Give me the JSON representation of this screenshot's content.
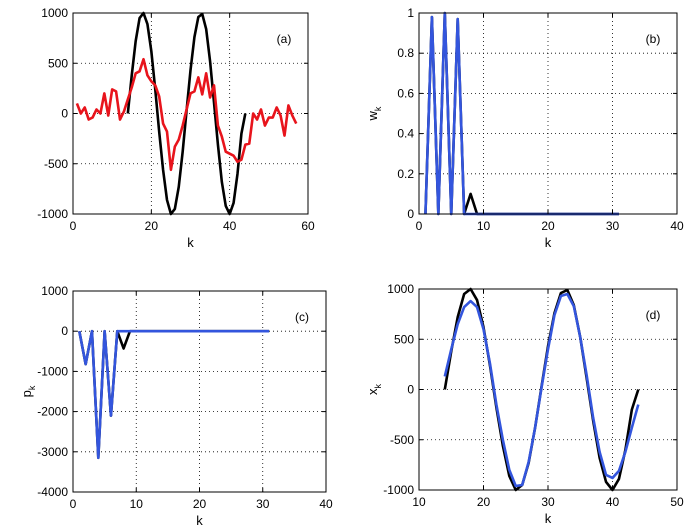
{
  "figure": {
    "background": "#ffffff",
    "grid_color": "#000000",
    "axes_color": "#000000"
  },
  "colors": {
    "black": "#000000",
    "red": "#e8141c",
    "blue": "#3355dd"
  },
  "chart_data": [
    {
      "type": "line",
      "panel_label": "(a)",
      "xlabel": "k",
      "ylabel": "",
      "ylabel_sub": "",
      "xlim": [
        0,
        60
      ],
      "ylim": [
        -1000,
        1000
      ],
      "xticks": [
        0,
        20,
        40,
        60
      ],
      "yticks": [
        -1000,
        -500,
        0,
        500,
        1000
      ],
      "grid": true,
      "series": [
        {
          "color": "black",
          "x": [
            14,
            15,
            16,
            17,
            18,
            19,
            20,
            21,
            22,
            23,
            24,
            25,
            26,
            27,
            28,
            29,
            30,
            31,
            32,
            33,
            34,
            35,
            36,
            37,
            38,
            39,
            40,
            41,
            42,
            43,
            44
          ],
          "y": [
            0,
            380,
            720,
            950,
            1000,
            890,
            620,
            240,
            -180,
            -560,
            -860,
            -1000,
            -950,
            -730,
            -380,
            30,
            430,
            760,
            960,
            990,
            840,
            520,
            110,
            -310,
            -680,
            -920,
            -1000,
            -890,
            -600,
            -200,
            0
          ]
        },
        {
          "color": "red",
          "x": [
            1,
            2,
            3,
            4,
            5,
            6,
            7,
            8,
            9,
            10,
            11,
            12,
            13,
            14,
            15,
            16,
            17,
            18,
            19,
            20,
            21,
            22,
            23,
            24,
            25,
            26,
            27,
            28,
            29,
            30,
            31,
            32,
            33,
            34,
            35,
            36,
            37,
            38,
            39,
            40,
            41,
            42,
            43,
            44,
            45,
            46,
            47,
            48,
            49,
            50,
            51,
            52,
            53,
            54,
            55,
            56,
            57
          ],
          "y": [
            100,
            0,
            60,
            -60,
            -40,
            40,
            0,
            200,
            -20,
            240,
            220,
            -60,
            20,
            140,
            260,
            400,
            420,
            540,
            380,
            320,
            280,
            170,
            -100,
            -180,
            -560,
            -330,
            -260,
            -120,
            40,
            200,
            220,
            360,
            190,
            400,
            160,
            280,
            -120,
            -230,
            -380,
            -400,
            -420,
            -480,
            -460,
            -310,
            -300,
            0,
            -60,
            40,
            -120,
            -40,
            -40,
            60,
            -20,
            -220,
            80,
            -20,
            -100
          ]
        }
      ]
    },
    {
      "type": "line",
      "panel_label": "(b)",
      "xlabel": "k",
      "ylabel": "w",
      "ylabel_sub": "k",
      "xlim": [
        0,
        40
      ],
      "ylim": [
        0,
        1
      ],
      "xticks": [
        0,
        10,
        20,
        30,
        40
      ],
      "yticks": [
        0,
        0.2,
        0.4,
        0.6,
        0.8,
        1
      ],
      "grid": true,
      "series": [
        {
          "color": "black",
          "x": [
            1,
            2,
            3,
            4,
            5,
            6,
            7,
            8,
            9,
            10,
            11,
            12,
            13,
            14,
            15,
            16,
            17,
            18,
            19,
            20,
            21,
            22,
            23,
            24,
            25,
            26,
            27,
            28,
            29,
            30,
            31
          ],
          "y": [
            0,
            0.98,
            0,
            1.0,
            0,
            0.97,
            0,
            0.1,
            0,
            0,
            0,
            0,
            0,
            0,
            0,
            0,
            0,
            0,
            0,
            0,
            0,
            0,
            0,
            0,
            0,
            0,
            0,
            0,
            0,
            0,
            0
          ]
        },
        {
          "color": "blue",
          "x": [
            1,
            2,
            3,
            4,
            5,
            6,
            7,
            8,
            9,
            10,
            11,
            12,
            13,
            14,
            15,
            16,
            17,
            18,
            19,
            20,
            21,
            22,
            23,
            24,
            25,
            26,
            27,
            28,
            29,
            30,
            31
          ],
          "y": [
            0,
            0.98,
            0,
            1.0,
            0,
            0.97,
            0,
            0,
            0,
            0,
            0,
            0,
            0,
            0,
            0,
            0,
            0,
            0,
            0,
            0,
            0,
            0,
            0,
            0,
            0,
            0,
            0,
            0,
            0,
            0,
            0
          ]
        }
      ]
    },
    {
      "type": "line",
      "panel_label": "(c)",
      "xlabel": "k",
      "ylabel": "p",
      "ylabel_sub": "k",
      "xlim": [
        0,
        40
      ],
      "ylim": [
        -4000,
        1000
      ],
      "xticks": [
        0,
        10,
        20,
        30,
        40
      ],
      "yticks": [
        -4000,
        -3000,
        -2000,
        -1000,
        0,
        1000
      ],
      "grid": true,
      "series": [
        {
          "color": "black",
          "x": [
            1,
            2,
            3,
            4,
            5,
            6,
            7,
            8,
            9,
            10,
            11,
            12,
            13,
            14,
            15,
            16,
            17,
            18,
            19,
            20,
            21,
            22,
            23,
            24,
            25,
            26,
            27,
            28,
            29,
            30,
            31
          ],
          "y": [
            0,
            -820,
            0,
            -3150,
            0,
            -2100,
            0,
            -430,
            0,
            0,
            0,
            0,
            0,
            0,
            0,
            0,
            0,
            0,
            0,
            0,
            0,
            0,
            0,
            0,
            0,
            0,
            0,
            0,
            0,
            0,
            0
          ]
        },
        {
          "color": "blue",
          "x": [
            1,
            2,
            3,
            4,
            5,
            6,
            7,
            8,
            9,
            10,
            11,
            12,
            13,
            14,
            15,
            16,
            17,
            18,
            19,
            20,
            21,
            22,
            23,
            24,
            25,
            26,
            27,
            28,
            29,
            30,
            31
          ],
          "y": [
            0,
            -820,
            0,
            -3150,
            0,
            -2100,
            0,
            0,
            0,
            0,
            0,
            0,
            0,
            0,
            0,
            0,
            0,
            0,
            0,
            0,
            0,
            0,
            0,
            0,
            0,
            0,
            0,
            0,
            0,
            0,
            0
          ]
        }
      ]
    },
    {
      "type": "line",
      "panel_label": "(d)",
      "xlabel": "k",
      "ylabel": "x",
      "ylabel_sub": "k",
      "xlim": [
        10,
        50
      ],
      "ylim": [
        -1000,
        1000
      ],
      "xticks": [
        10,
        20,
        30,
        40,
        50
      ],
      "yticks": [
        -1000,
        -500,
        0,
        500,
        1000
      ],
      "grid": true,
      "series": [
        {
          "color": "black",
          "x": [
            14,
            15,
            16,
            17,
            18,
            19,
            20,
            21,
            22,
            23,
            24,
            25,
            26,
            27,
            28,
            29,
            30,
            31,
            32,
            33,
            34,
            35,
            36,
            37,
            38,
            39,
            40,
            41,
            42,
            43,
            44
          ],
          "y": [
            0,
            380,
            720,
            950,
            1000,
            890,
            620,
            240,
            -180,
            -560,
            -860,
            -1000,
            -950,
            -730,
            -380,
            30,
            430,
            760,
            960,
            990,
            840,
            520,
            110,
            -310,
            -680,
            -920,
            -1000,
            -890,
            -600,
            -200,
            0
          ]
        },
        {
          "color": "blue",
          "x": [
            14,
            15,
            16,
            17,
            18,
            19,
            20,
            21,
            22,
            23,
            24,
            25,
            26,
            27,
            28,
            29,
            30,
            31,
            32,
            33,
            34,
            35,
            36,
            37,
            38,
            39,
            40,
            41,
            42,
            43,
            44
          ],
          "y": [
            130,
            400,
            650,
            820,
            880,
            820,
            600,
            260,
            -150,
            -500,
            -800,
            -960,
            -950,
            -720,
            -380,
            20,
            400,
            740,
            930,
            950,
            830,
            520,
            140,
            -280,
            -620,
            -850,
            -880,
            -810,
            -620,
            -380,
            -150
          ]
        }
      ]
    }
  ]
}
